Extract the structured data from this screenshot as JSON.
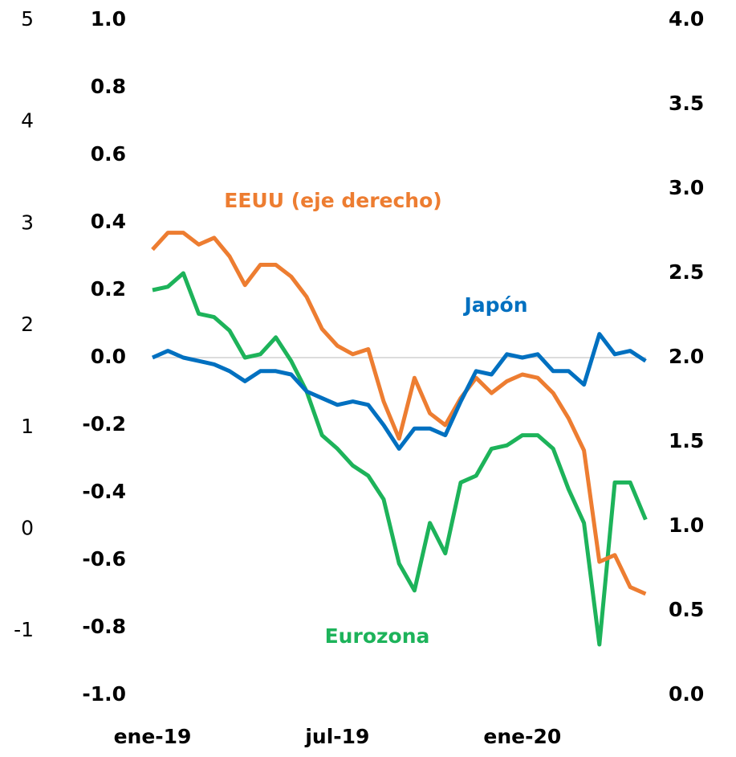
{
  "chart_data": {
    "type": "line",
    "categories": [
      "ene-19",
      null,
      null,
      null,
      null,
      null,
      null,
      null,
      null,
      null,
      null,
      null,
      "jul-19",
      null,
      null,
      null,
      null,
      null,
      null,
      null,
      null,
      null,
      null,
      null,
      "ene-20",
      null,
      null,
      null,
      null,
      null,
      null,
      null,
      null
    ],
    "series": [
      {
        "name": "Japón",
        "color": "#0070C0",
        "axis": "y",
        "values": [
          0.0,
          0.02,
          0.0,
          -0.01,
          -0.02,
          -0.04,
          -0.07,
          -0.04,
          -0.04,
          -0.05,
          -0.1,
          -0.12,
          -0.14,
          -0.13,
          -0.14,
          -0.2,
          -0.27,
          -0.21,
          -0.21,
          -0.23,
          -0.13,
          -0.04,
          -0.05,
          0.01,
          0.0,
          0.01,
          -0.04,
          -0.04,
          -0.08,
          0.07,
          0.01,
          0.02,
          -0.01
        ]
      },
      {
        "name": "Eurozona",
        "color": "#1DB35A",
        "axis": "y",
        "values": [
          0.2,
          0.21,
          0.25,
          0.13,
          0.12,
          0.08,
          0.0,
          0.01,
          0.06,
          -0.01,
          -0.1,
          -0.23,
          -0.27,
          -0.32,
          -0.35,
          -0.42,
          -0.61,
          -0.69,
          -0.49,
          -0.58,
          -0.37,
          -0.35,
          -0.27,
          -0.26,
          -0.23,
          -0.23,
          -0.27,
          -0.39,
          -0.49,
          -0.85,
          -0.37,
          -0.37,
          -0.48
        ]
      },
      {
        "name": "EEUU (eje derecho)",
        "color": "#ED7D31",
        "axis": "y2",
        "values": [
          2.64,
          2.74,
          2.74,
          2.67,
          2.71,
          2.6,
          2.43,
          2.55,
          2.55,
          2.48,
          2.36,
          2.17,
          2.07,
          2.02,
          2.05,
          1.74,
          1.52,
          1.88,
          1.67,
          1.6,
          1.76,
          1.88,
          1.79,
          1.86,
          1.9,
          1.88,
          1.79,
          1.64,
          1.45,
          0.79,
          0.83,
          0.64,
          0.6
        ]
      }
    ],
    "ylim": [
      -1.0,
      1.0
    ],
    "yticks": [
      {
        "value": -1.0,
        "label": "-1.0"
      },
      -0.8,
      -0.6,
      -0.4,
      -0.2,
      {
        "value": 0.0,
        "label": "0.0"
      },
      0.2,
      0.4,
      0.6,
      0.8,
      {
        "value": 1.0,
        "label": "1.0"
      }
    ],
    "y2lim": [
      0.0,
      4.0
    ],
    "y2ticks": [
      {
        "value": 0.0,
        "label": "0.0"
      },
      0.5,
      {
        "value": 1.0,
        "label": "1.0"
      },
      1.5,
      {
        "value": 2.0,
        "label": "2.0"
      },
      2.5,
      {
        "value": 3.0,
        "label": "3.0"
      },
      3.5,
      {
        "value": 4.0,
        "label": "4.0"
      }
    ],
    "y3lim": [
      -1.63,
      5
    ],
    "y3ticks": [
      -1,
      0,
      1,
      2,
      3,
      4,
      5
    ],
    "reference_line": 0
  }
}
